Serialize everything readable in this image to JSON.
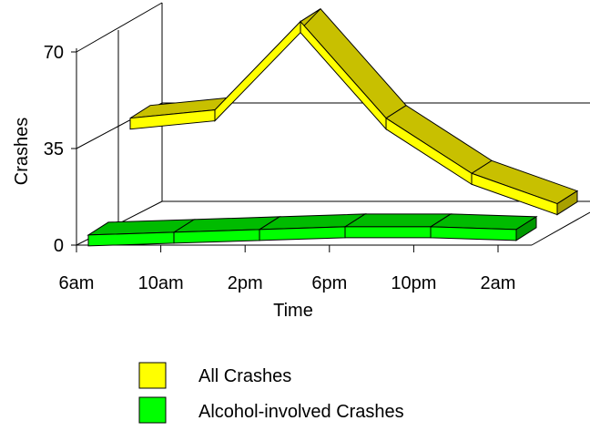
{
  "chart_data": {
    "type": "line",
    "style": "3d-ribbon",
    "xlabel": "Time",
    "ylabel": "Crashes",
    "categories": [
      "6am",
      "10am",
      "2pm",
      "6pm",
      "10pm",
      "2am"
    ],
    "ylim": [
      0,
      70
    ],
    "yticks": [
      "0",
      "35",
      "70"
    ],
    "x": [
      0,
      1,
      2,
      3,
      4,
      5,
      6
    ],
    "series": [
      {
        "name": "All Crashes",
        "values": [
          46,
          49,
          81,
          46,
          26,
          15
        ],
        "color": "#ffff00",
        "top_color": "#c8c000",
        "side_color": "#a8a000"
      },
      {
        "name": "Alcohol-involved Crashes",
        "values": [
          3,
          4,
          5,
          6,
          6,
          5
        ],
        "color": "#00ff00",
        "top_color": "#00bb00",
        "side_color": "#009900"
      }
    ],
    "legend_position": "bottom",
    "grid": false
  }
}
